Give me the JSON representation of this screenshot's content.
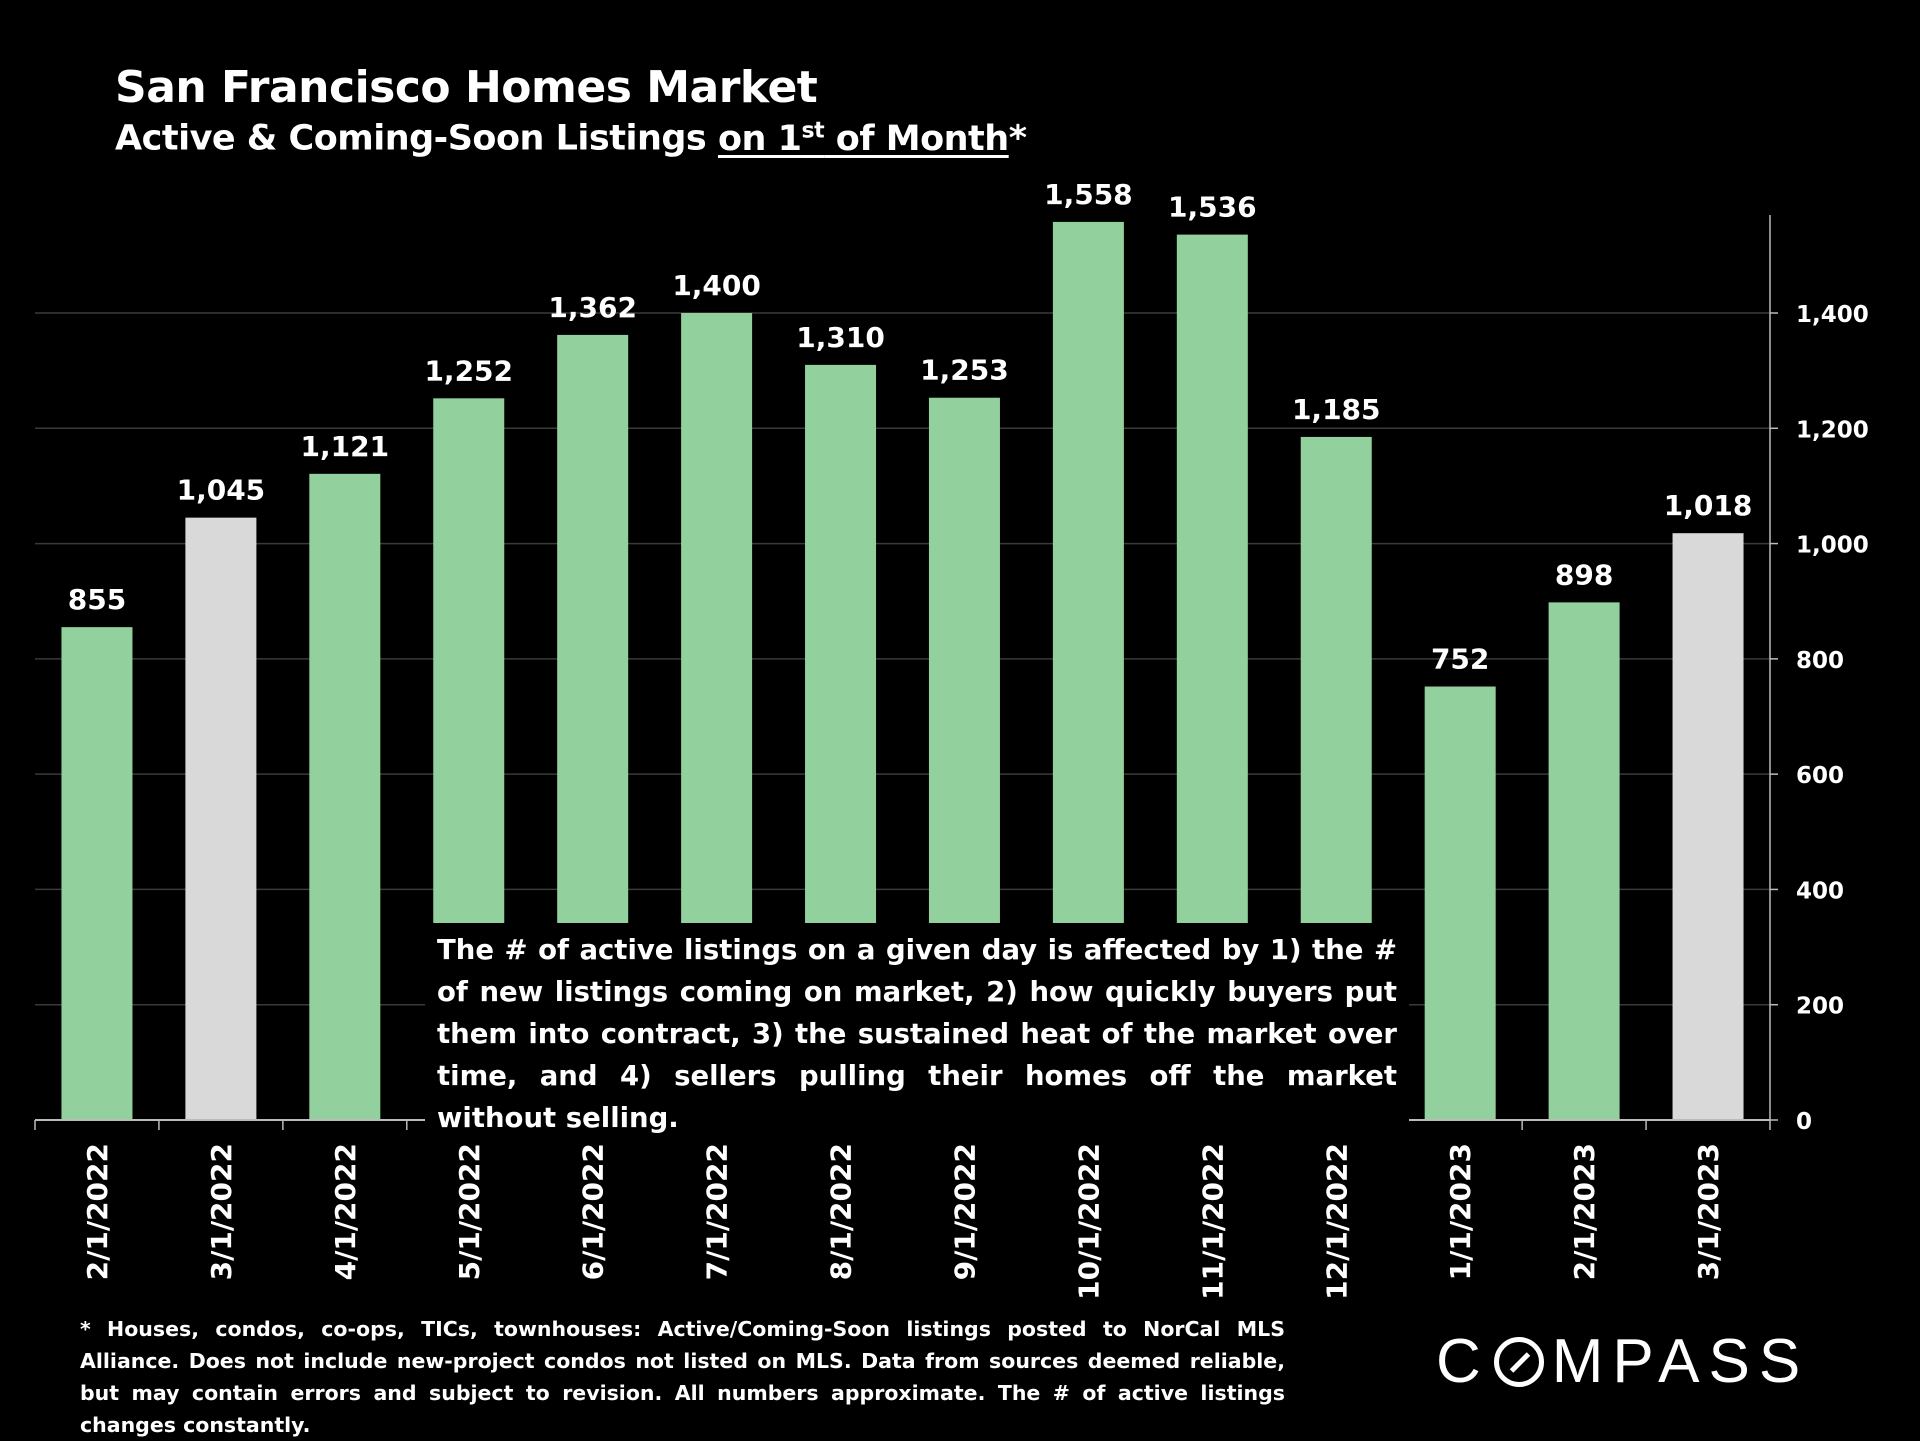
{
  "header": {
    "title": "San Francisco Homes Market",
    "subtitle_prefix": "Active & Coming-Soon Listings ",
    "subtitle_underlined_pre": "on 1",
    "subtitle_sup": "st",
    "subtitle_underlined_post": " of Month",
    "subtitle_suffix": "*"
  },
  "colors": {
    "background": "#000000",
    "bar_green": "#92d09e",
    "bar_gray": "#d9d9d9",
    "gridline": "#3a3a3a",
    "text": "#ffffff"
  },
  "chart_data": {
    "type": "bar",
    "title": "San Francisco Homes Market",
    "subtitle": "Active & Coming-Soon Listings on 1st of Month*",
    "categories": [
      "2/1/2022",
      "3/1/2022",
      "4/1/2022",
      "5/1/2022",
      "6/1/2022",
      "7/1/2022",
      "8/1/2022",
      "9/1/2022",
      "10/1/2022",
      "11/1/2022",
      "12/1/2022",
      "1/1/2023",
      "2/1/2023",
      "3/1/2023"
    ],
    "values": [
      855,
      1045,
      1121,
      1252,
      1362,
      1400,
      1310,
      1253,
      1558,
      1536,
      1185,
      752,
      898,
      1018
    ],
    "value_labels": [
      "855",
      "1,045",
      "1,121",
      "1,252",
      "1,362",
      "1,400",
      "1,310",
      "1,253",
      "1,558",
      "1,536",
      "1,185",
      "752",
      "898",
      "1,018"
    ],
    "bar_colors": [
      "green",
      "gray",
      "green",
      "green",
      "green",
      "green",
      "green",
      "green",
      "green",
      "green",
      "green",
      "green",
      "green",
      "gray"
    ],
    "y_ticks": [
      0,
      200,
      400,
      600,
      800,
      1000,
      1200,
      1400
    ],
    "y_tick_labels": [
      "0",
      "200",
      "400",
      "600",
      "800",
      "1,000",
      "1,200",
      "1,400"
    ],
    "ylim": [
      0,
      1570
    ],
    "y_axis_side": "right",
    "grid": true,
    "xlabel": "",
    "ylabel": ""
  },
  "annotation": "The # of active listings on a given day is affected by 1) the # of new listings coming on market, 2) how quickly buyers put them into contract, 3) the sustained heat of the market over time, and 4) sellers pulling their homes off the market without selling.",
  "footnote": "* Houses, condos, co-ops, TICs, townhouses: Active/Coming-Soon listings posted to NorCal MLS Alliance. Does not include new-project condos not listed on MLS. Data from sources deemed reliable, but may contain errors and subject to revision. All numbers approximate. The # of active listings changes constantly.",
  "brand": {
    "logo_pre": "C",
    "logo_post": "MPASS"
  }
}
